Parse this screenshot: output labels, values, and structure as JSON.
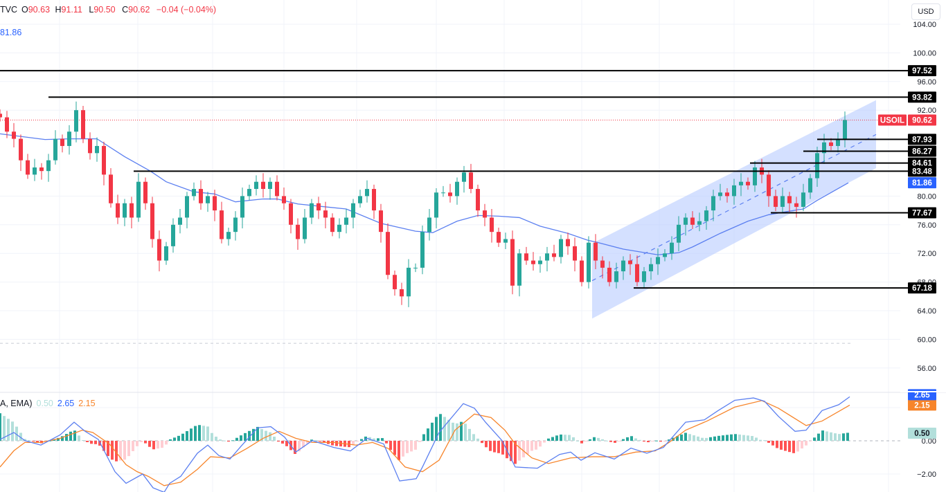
{
  "header": {
    "source": "TVC",
    "open_label": "O",
    "open": "90.63",
    "high_label": "H",
    "high": "91.11",
    "low_label": "L",
    "low": "90.50",
    "close_label": "C",
    "close": "90.62",
    "change": "−0.04 (−0.04%)",
    "ema_value": "81.86"
  },
  "macd_legend": {
    "name": "A, EMA)",
    "histogram": "0.50",
    "macd": "2.65",
    "signal": "2.15"
  },
  "currency": "USD",
  "colors": {
    "up": "#26a69a",
    "down": "#f23645",
    "ema": "#5b7ff0",
    "macd": "#5b7ff0",
    "signal": "#f7852b",
    "channel": "#b8ccff",
    "level": "#000000",
    "price_line": "#f23645"
  },
  "chart_data": [
    {
      "type": "candlestick",
      "symbol": "USOIL",
      "last_price": 90.62,
      "ylim": [
        53,
        106
      ],
      "y_ticks": [
        104,
        100,
        96,
        92,
        80,
        76,
        72,
        68,
        64,
        60,
        56
      ],
      "grid": true,
      "closes": [
        91,
        89,
        88,
        85,
        83,
        84,
        83.5,
        85,
        88,
        87,
        89,
        92,
        88,
        86,
        87,
        83,
        79,
        77,
        79,
        77,
        82,
        79,
        74,
        71,
        73,
        76,
        77,
        80,
        81,
        79,
        80,
        78,
        74,
        75,
        77,
        80,
        81,
        82,
        81,
        82,
        80,
        79,
        76,
        74,
        77,
        79,
        78,
        77,
        75,
        76,
        77,
        79,
        80,
        81,
        78,
        75,
        69,
        67,
        66,
        70,
        70,
        75,
        77,
        80.5,
        80.5,
        80,
        82,
        83.3,
        81,
        78,
        77,
        75,
        73.5,
        74,
        67.5,
        72,
        71,
        70.5,
        71,
        72,
        71.5,
        74,
        73,
        71,
        68,
        73.5,
        71,
        70,
        68,
        69.5,
        71,
        70.5,
        68,
        69.5,
        70.5,
        71.5,
        72,
        73.5,
        76,
        77,
        76,
        76.5,
        78,
        80,
        80.5,
        80,
        81.5,
        82,
        81.5,
        84,
        83,
        80,
        78.5,
        80,
        79,
        78.5,
        80.5,
        82.5,
        86,
        87.5,
        87,
        88,
        90.62
      ],
      "ema": {
        "label": "81.86",
        "points": [
          [
            0,
            88.7
          ],
          [
            6.5,
            87.9
          ],
          [
            10,
            88
          ],
          [
            14,
            88
          ],
          [
            18,
            85.5
          ],
          [
            21.7,
            83.5
          ],
          [
            24,
            82
          ],
          [
            28,
            80.6
          ],
          [
            31,
            80.3
          ],
          [
            34,
            79.2
          ],
          [
            38,
            79.6
          ],
          [
            40,
            79.6
          ],
          [
            43,
            78.9
          ],
          [
            47,
            78.5
          ],
          [
            50,
            78.2
          ],
          [
            55,
            76.2
          ],
          [
            60,
            75.1
          ],
          [
            62.5,
            74.9
          ],
          [
            66,
            76.5
          ],
          [
            69,
            77.3
          ],
          [
            72,
            77.2
          ],
          [
            75,
            77
          ],
          [
            78,
            75.8
          ],
          [
            82,
            74.8
          ],
          [
            85,
            73.8
          ],
          [
            86,
            73.6
          ],
          [
            90,
            72.6
          ],
          [
            95,
            71.8
          ],
          [
            98,
            72.1
          ],
          [
            100,
            72.9
          ],
          [
            104,
            74.8
          ],
          [
            108,
            76.5
          ],
          [
            111,
            77.4
          ],
          [
            114,
            77.9
          ],
          [
            116,
            78.2
          ],
          [
            118,
            79.4
          ],
          [
            122.5,
            81.86
          ]
        ]
      },
      "levels": [
        {
          "price": "97.52",
          "from_bar": 0
        },
        {
          "price": "93.82",
          "from_bar": 7
        },
        {
          "price": "87.93",
          "from_bar": 118
        },
        {
          "price": "86.27",
          "from_bar": 116
        },
        {
          "price": "84.61",
          "from_bar": 108.3
        },
        {
          "price": "83.48",
          "from_bar": 19.3
        },
        {
          "price": "77.67",
          "from_bar": 111.3
        },
        {
          "price": "67.18",
          "from_bar": 91.5
        }
      ],
      "dashed_level": 59.45,
      "channel": {
        "from_bar": 85.5,
        "to_bar": 126.5,
        "upper": [
          73.4,
          93.4
        ],
        "lower": [
          62.9,
          83.9
        ],
        "middle": [
          68.2,
          88.6
        ]
      }
    },
    {
      "type": "macd",
      "ylim": [
        -3.1,
        2.9
      ],
      "y_ticks": [
        0,
        -2
      ],
      "macd": [
        [
          0,
          0.08
        ],
        [
          2,
          0.5
        ],
        [
          3.6,
          0.01
        ],
        [
          5.9,
          -0.26
        ],
        [
          8.7,
          0.36
        ],
        [
          10.7,
          1.12
        ],
        [
          12.3,
          0.57
        ],
        [
          14.2,
          0.08
        ],
        [
          16.6,
          -1.86
        ],
        [
          18.2,
          -2.56
        ],
        [
          20.6,
          -2.0
        ],
        [
          22.1,
          -2.83
        ],
        [
          23.7,
          -3.1
        ],
        [
          24.5,
          -2.56
        ],
        [
          26.1,
          -2.14
        ],
        [
          28.5,
          -0.75
        ],
        [
          30,
          -0.26
        ],
        [
          31.6,
          -0.89
        ],
        [
          33.2,
          -1.1
        ],
        [
          34.8,
          -0.33
        ],
        [
          37.2,
          0.78
        ],
        [
          39.1,
          0.85
        ],
        [
          41.1,
          0.22
        ],
        [
          42.7,
          -0.68
        ],
        [
          45.1,
          0.01
        ],
        [
          48.2,
          -0.4
        ],
        [
          50.6,
          -0.61
        ],
        [
          53,
          0.15
        ],
        [
          55.4,
          -0.19
        ],
        [
          57.7,
          -2.42
        ],
        [
          60.1,
          -2.28
        ],
        [
          61,
          -1.58
        ],
        [
          63.4,
          0.5
        ],
        [
          66.9,
          2.24
        ],
        [
          68.5,
          1.96
        ],
        [
          70.1,
          1.12
        ],
        [
          72.5,
          0.01
        ],
        [
          74.4,
          -1.58
        ],
        [
          77.6,
          -1.65
        ],
        [
          80.8,
          -0.82
        ],
        [
          82.4,
          -0.68
        ],
        [
          83.9,
          -1.17
        ],
        [
          85.9,
          -0.72
        ],
        [
          88.7,
          -1.1
        ],
        [
          91.1,
          -0.44
        ],
        [
          93.4,
          -0.75
        ],
        [
          95.8,
          -0.4
        ],
        [
          99,
          1.12
        ],
        [
          101.7,
          1.26
        ],
        [
          103.7,
          1.82
        ],
        [
          106.1,
          2.44
        ],
        [
          108.8,
          2.58
        ],
        [
          110.4,
          2.38
        ],
        [
          112.4,
          1.47
        ],
        [
          114.8,
          0.57
        ],
        [
          116.4,
          0.64
        ],
        [
          118.7,
          1.82
        ],
        [
          121.1,
          2.17
        ],
        [
          122.7,
          2.65
        ]
      ],
      "signal": [
        [
          0,
          -1.58
        ],
        [
          2,
          -0.6
        ],
        [
          3.6,
          -0.1
        ],
        [
          5.9,
          -0.1
        ],
        [
          8.7,
          0.15
        ],
        [
          11.9,
          0.64
        ],
        [
          13.4,
          0.5
        ],
        [
          15.8,
          -0.19
        ],
        [
          18.2,
          -1.44
        ],
        [
          19.8,
          -1.86
        ],
        [
          21.4,
          -2.14
        ],
        [
          23.7,
          -2.7
        ],
        [
          26.1,
          -2.49
        ],
        [
          28.5,
          -1.72
        ],
        [
          30.4,
          -0.96
        ],
        [
          33.2,
          -1.03
        ],
        [
          35.6,
          -0.47
        ],
        [
          38,
          0.15
        ],
        [
          40.3,
          0.57
        ],
        [
          42.7,
          0.15
        ],
        [
          45.1,
          -0.1
        ],
        [
          48.2,
          -0.1
        ],
        [
          51.4,
          -0.26
        ],
        [
          53.8,
          -0.1
        ],
        [
          56.1,
          -0.47
        ],
        [
          58.5,
          -1.58
        ],
        [
          61,
          -1.86
        ],
        [
          63.4,
          -1.17
        ],
        [
          65.7,
          0.64
        ],
        [
          68.5,
          1.61
        ],
        [
          70.9,
          1.4
        ],
        [
          72.9,
          0.64
        ],
        [
          74.4,
          -0.19
        ],
        [
          76.8,
          -1.03
        ],
        [
          79.2,
          -1.37
        ],
        [
          82.4,
          -1.03
        ],
        [
          85.5,
          -0.96
        ],
        [
          88.7,
          -0.96
        ],
        [
          91.8,
          -0.68
        ],
        [
          94.6,
          -0.61
        ],
        [
          96.6,
          -0.1
        ],
        [
          99,
          0.64
        ],
        [
          102.1,
          1.19
        ],
        [
          106.1,
          2.03
        ],
        [
          110,
          2.42
        ],
        [
          112.4,
          1.96
        ],
        [
          116.4,
          0.92
        ],
        [
          118.7,
          1.19
        ],
        [
          122.7,
          2.15
        ]
      ]
    }
  ]
}
